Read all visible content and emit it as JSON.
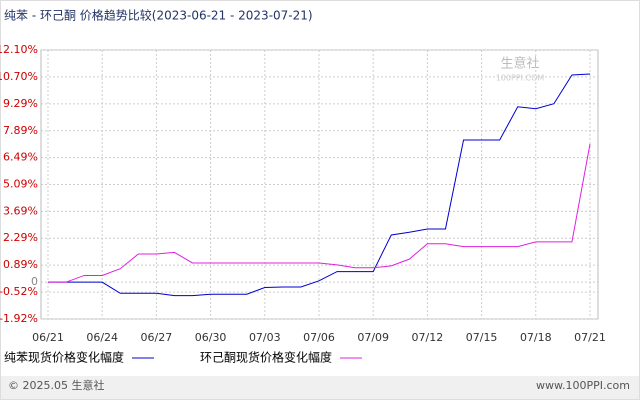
{
  "chart_data": {
    "type": "line",
    "title": "纯苯 - 环己酮 价格趋势比较(2023-06-21 - 2023-07-21)",
    "categories": [
      "06/21",
      null,
      null,
      "06/24",
      null,
      null,
      "06/27",
      null,
      null,
      "06/30",
      null,
      null,
      "07/03",
      null,
      null,
      "07/06",
      null,
      null,
      "07/09",
      null,
      null,
      "07/12",
      null,
      null,
      "07/15",
      null,
      null,
      "07/18",
      null,
      null,
      "07/21"
    ],
    "series": [
      {
        "name": "纯苯现货价格变化幅度",
        "color": "#0000cc",
        "values": [
          0,
          0,
          0,
          0,
          -0.58,
          -0.58,
          -0.58,
          -0.7,
          -0.7,
          -0.63,
          -0.63,
          -0.63,
          -0.28,
          -0.25,
          -0.25,
          0.07,
          0.55,
          0.55,
          0.55,
          2.46,
          2.6,
          2.77,
          2.77,
          7.41,
          7.41,
          7.41,
          9.14,
          9.04,
          9.3,
          10.8,
          10.85
        ]
      },
      {
        "name": "环己酮现货价格变化幅度",
        "color": "#e020e0",
        "values": [
          0,
          0,
          0.35,
          0.35,
          0.7,
          1.47,
          1.47,
          1.55,
          1.0,
          1.0,
          1.0,
          1.0,
          1.0,
          1.0,
          1.0,
          1.0,
          0.9,
          0.75,
          0.75,
          0.85,
          1.2,
          2.0,
          2.0,
          1.85,
          1.85,
          1.85,
          1.85,
          2.1,
          2.1,
          2.1,
          7.2
        ]
      }
    ],
    "ylim": [
      -1.92,
      12.1
    ],
    "yticks": [
      {
        "value": 12.1,
        "label": "12.10%"
      },
      {
        "value": 10.7,
        "label": "10.70%"
      },
      {
        "value": 9.29,
        "label": "9.29%"
      },
      {
        "value": 7.89,
        "label": "7.89%"
      },
      {
        "value": 6.49,
        "label": "6.49%"
      },
      {
        "value": 5.09,
        "label": "5.09%"
      },
      {
        "value": 3.69,
        "label": "3.69%"
      },
      {
        "value": 2.29,
        "label": "2.29%"
      },
      {
        "value": 0.89,
        "label": "0.89%"
      },
      0,
      {
        "value": -0.52,
        "label": "-0.52%"
      },
      {
        "value": -1.92,
        "label": "-1.92%"
      }
    ],
    "grid": true,
    "watermark": [
      "生意社",
      "100PPI.COM"
    ],
    "footer": {
      "left": "© 2025.05 生意社",
      "right": "www.100PPI.com"
    }
  }
}
